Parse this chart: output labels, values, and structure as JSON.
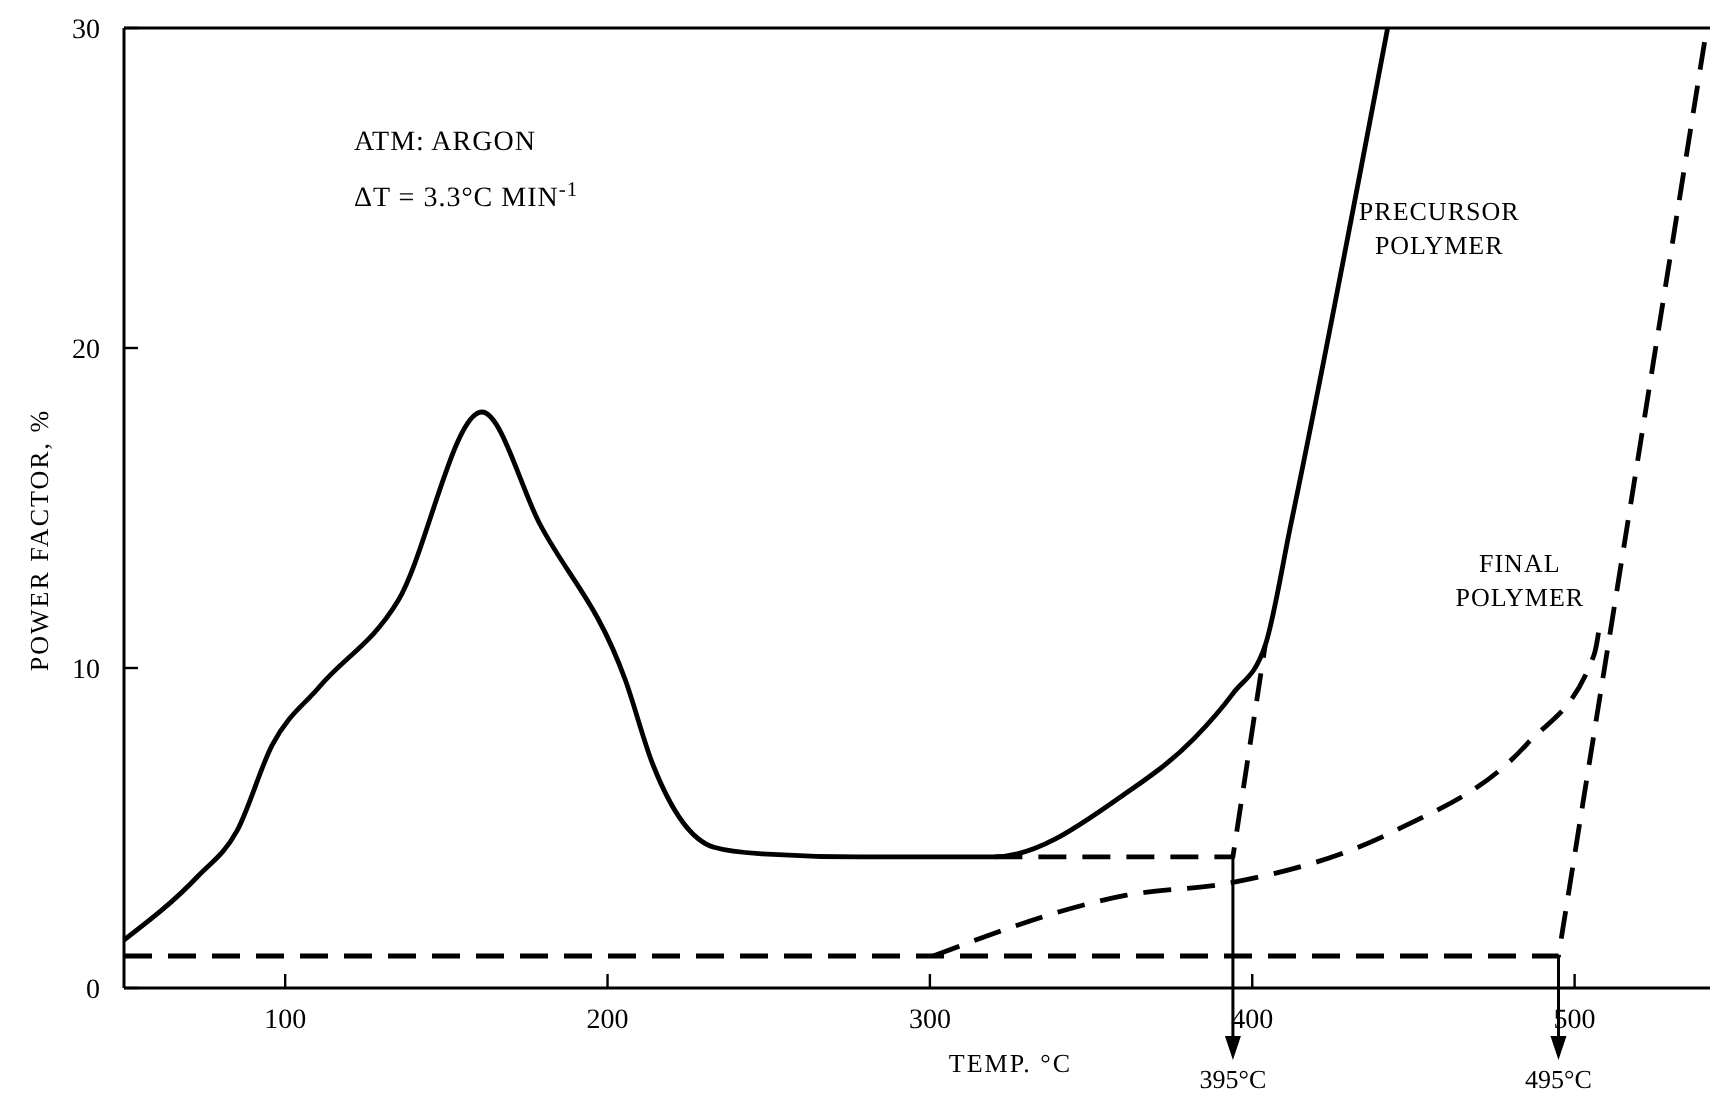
{
  "chart_data": {
    "type": "line",
    "xlabel": "TEMP. °C",
    "ylabel": "POWER FACTOR, %",
    "xlim": [
      50,
      542
    ],
    "ylim": [
      0,
      30
    ],
    "xticks": [
      100,
      200,
      300,
      400,
      500
    ],
    "yticks": [
      0,
      10,
      20,
      30
    ],
    "grid": false,
    "series": [
      {
        "name": "PRECURSOR POLYMER",
        "color": "#000000",
        "line_style": "solid",
        "x": [
          50,
          73,
          85,
          96,
          110.5,
          135,
          161,
          179,
          205.6,
          214,
          233,
          247,
          278,
          320,
          361,
          382,
          394,
          404,
          412,
          442
        ],
        "values": [
          1.5,
          3.5,
          4.9,
          7.6,
          9.4,
          12.1,
          18,
          14.5,
          9.6,
          7,
          4.4,
          4.2,
          4.1,
          4.1,
          6.1,
          7.8,
          9.2,
          10.7,
          14.5,
          30
        ]
      },
      {
        "color": "#000000",
        "line_style": "dashed",
        "x": [
          320,
          394,
          404
        ],
        "values": [
          4.1,
          4.1,
          10.7
        ]
      },
      {
        "name": "FINAL POLYMER",
        "color": "#000000",
        "line_style": "dashed",
        "x": [
          50,
          495,
          541
        ],
        "values": [
          1,
          1,
          30
        ]
      },
      {
        "color": "#000000",
        "line_style": "dashed",
        "x": [
          301,
          361,
          394,
          444,
          485,
          506,
          508
        ],
        "values": [
          1,
          2.9,
          3.3,
          4.9,
          7.6,
          10.4,
          11.5
        ]
      }
    ],
    "annotations": [
      "ATM: ARGON",
      "ΔT = 3.3°C MIN$^{-1}$",
      {
        "text": "395°C",
        "x": 394,
        "y": 4.1
      },
      {
        "text": "495°C",
        "x": 495,
        "y": 1
      }
    ]
  }
}
